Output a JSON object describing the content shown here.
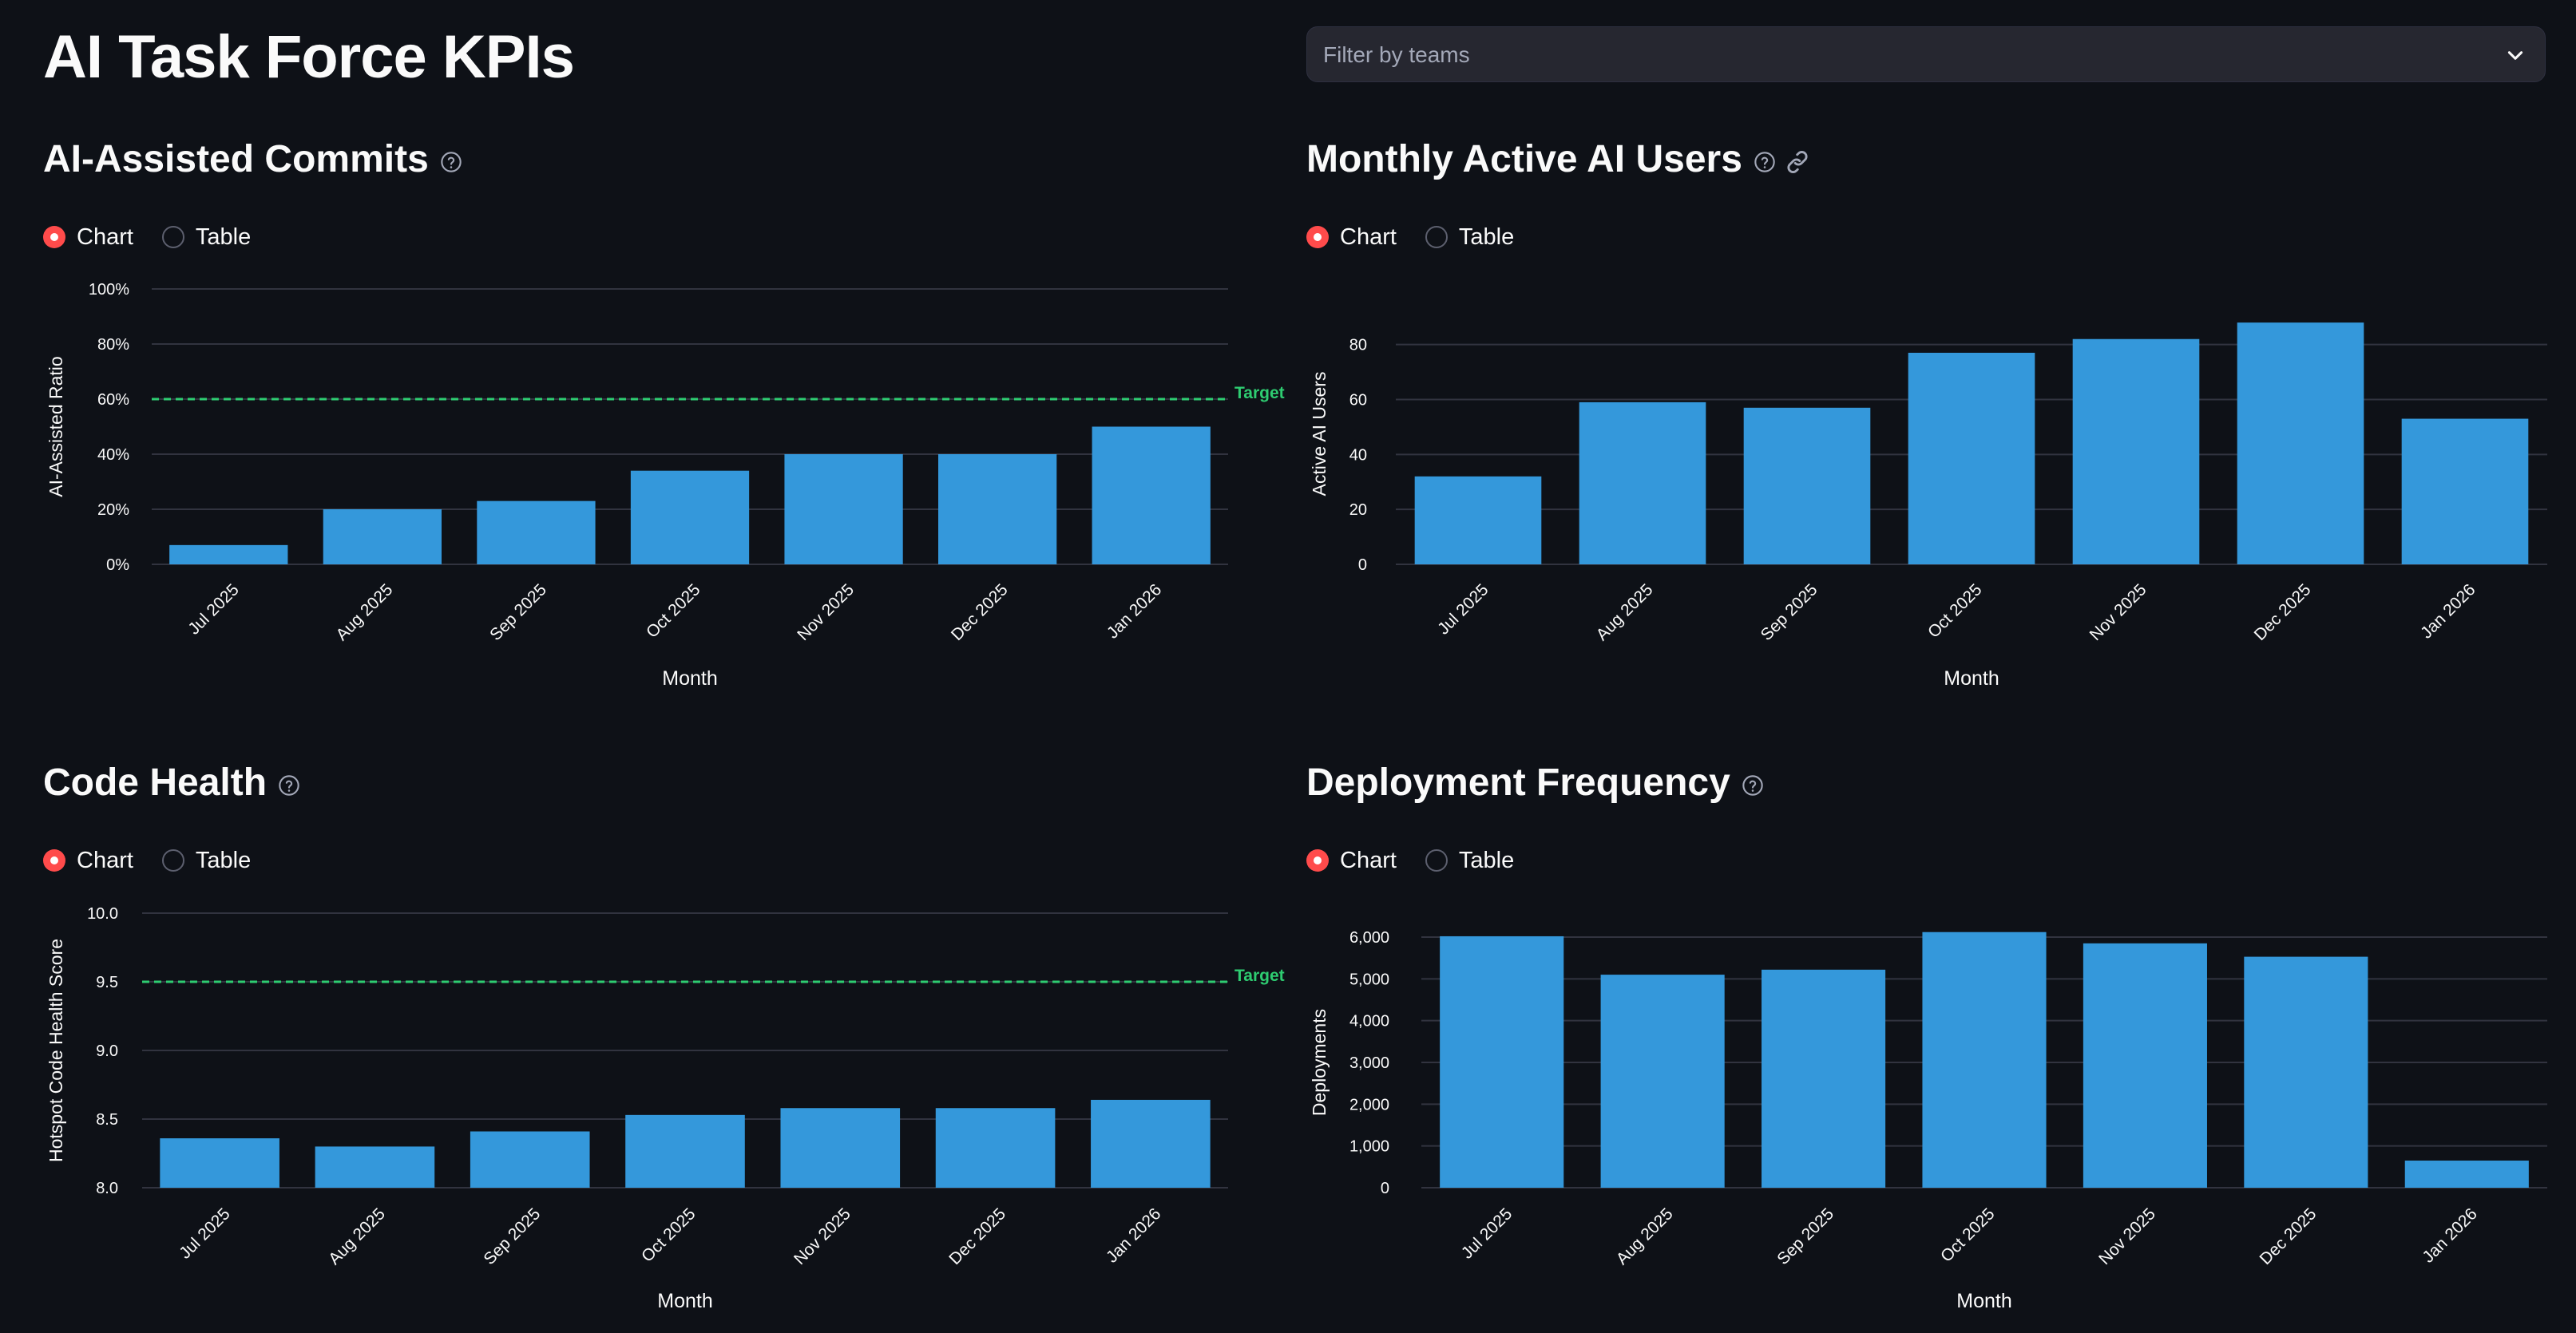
{
  "page": {
    "title": "AI Task Force KPIs",
    "filter": {
      "placeholder": "Filter by teams"
    }
  },
  "sections": [
    {
      "title": "AI-Assisted Commits",
      "radio": {
        "options": [
          "Chart",
          "Table"
        ],
        "selected": "Chart"
      },
      "chart_data": {
        "type": "bar",
        "categories": [
          "Jul 2025",
          "Aug 2025",
          "Sep 2025",
          "Oct 2025",
          "Nov 2025",
          "Dec 2025",
          "Jan 2026"
        ],
        "values": [
          0.07,
          0.2,
          0.23,
          0.34,
          0.4,
          0.4,
          0.5
        ],
        "xlabel": "Month",
        "ylabel": "AI-Assisted Ratio",
        "ylim": [
          0,
          1
        ],
        "yticks": [
          0,
          0.2,
          0.4,
          0.6,
          0.8,
          1
        ],
        "ytick_labels": [
          "0%",
          "20%",
          "40%",
          "60%",
          "80%",
          "100%"
        ],
        "target": {
          "value": 0.6,
          "label": "Target"
        },
        "bar_color": "#3498db",
        "target_color": "#2ecc71"
      }
    },
    {
      "title": "Monthly Active AI Users",
      "radio": {
        "options": [
          "Chart",
          "Table"
        ],
        "selected": "Chart"
      },
      "chart_data": {
        "type": "bar",
        "categories": [
          "Jul 2025",
          "Aug 2025",
          "Sep 2025",
          "Oct 2025",
          "Nov 2025",
          "Dec 2025",
          "Jan 2026"
        ],
        "values": [
          32,
          59,
          57,
          77,
          82,
          88,
          53
        ],
        "xlabel": "Month",
        "ylabel": "Active AI Users",
        "ylim": [
          0,
          95
        ],
        "yticks": [
          0,
          20,
          40,
          60,
          80
        ],
        "ytick_labels": [
          "0",
          "20",
          "40",
          "60",
          "80"
        ],
        "bar_color": "#3498db"
      }
    },
    {
      "title": "Code Health",
      "radio": {
        "options": [
          "Chart",
          "Table"
        ],
        "selected": "Chart"
      },
      "chart_data": {
        "type": "bar",
        "categories": [
          "Jul 2025",
          "Aug 2025",
          "Sep 2025",
          "Oct 2025",
          "Nov 2025",
          "Dec 2025",
          "Jan 2026"
        ],
        "values": [
          8.36,
          8.3,
          8.41,
          8.53,
          8.58,
          8.58,
          8.64
        ],
        "xlabel": "Month",
        "ylabel": "Hotspot Code Health Score",
        "ylim": [
          8,
          10
        ],
        "yticks": [
          8,
          8.5,
          9,
          9.5,
          10
        ],
        "ytick_labels": [
          "8.0",
          "8.5",
          "9.0",
          "9.5",
          "10.0"
        ],
        "target": {
          "value": 9.5,
          "label": "Target"
        },
        "bar_color": "#3498db",
        "target_color": "#2ecc71"
      }
    },
    {
      "title": "Deployment Frequency",
      "radio": {
        "options": [
          "Chart",
          "Table"
        ],
        "selected": "Chart"
      },
      "chart_data": {
        "type": "bar",
        "categories": [
          "Jul 2025",
          "Aug 2025",
          "Sep 2025",
          "Oct 2025",
          "Nov 2025",
          "Dec 2025",
          "Jan 2026"
        ],
        "values": [
          6020,
          5100,
          5220,
          6120,
          5850,
          5530,
          650
        ],
        "xlabel": "Month",
        "ylabel": "Deployments",
        "ylim": [
          0,
          6000
        ],
        "yticks": [
          0,
          1000,
          2000,
          3000,
          4000,
          5000,
          6000
        ],
        "ytick_labels": [
          "0",
          "1,000",
          "2,000",
          "3,000",
          "4,000",
          "5,000",
          "6,000"
        ],
        "bar_color": "#3498db"
      }
    }
  ]
}
